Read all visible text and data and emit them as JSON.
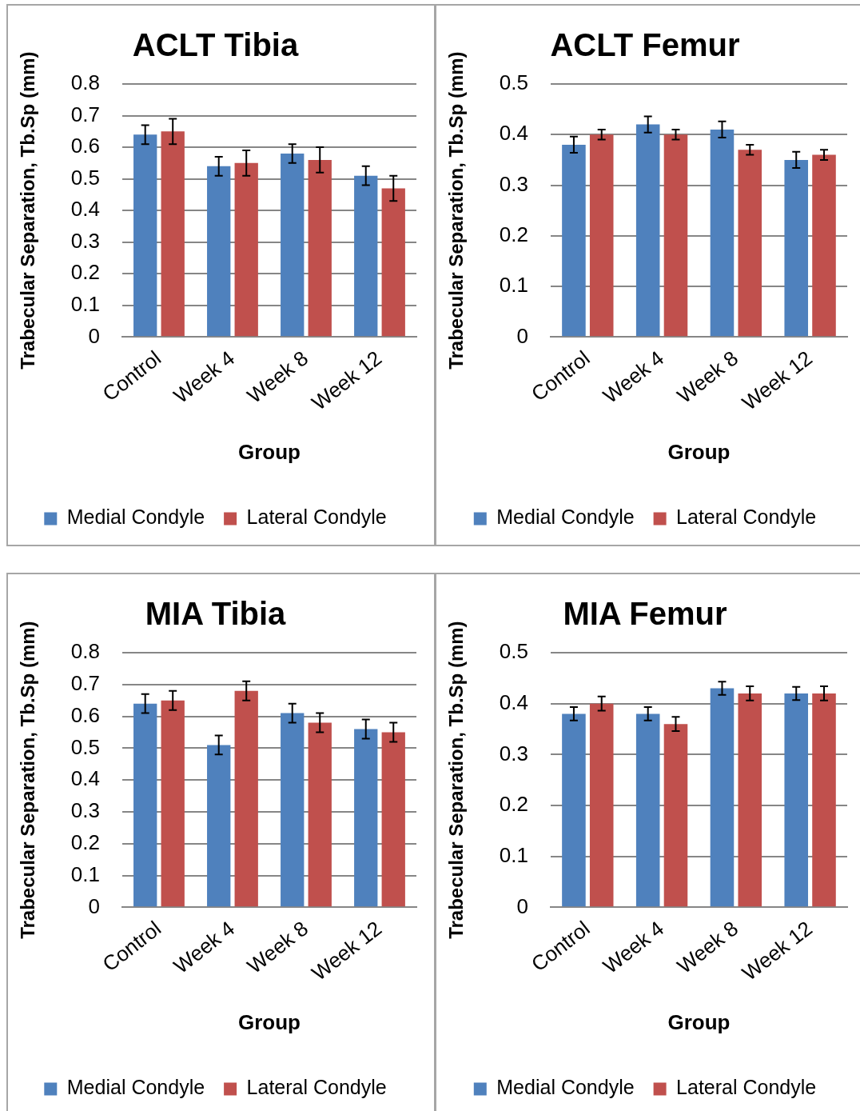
{
  "chart_data": [
    {
      "type": "bar",
      "title": "ACLT Tibia",
      "xlabel": "Group",
      "ylabel": "Trabecular Separation, Tb.Sp (mm)",
      "categories": [
        "Control",
        "Week 4",
        "Week 8",
        "Week 12"
      ],
      "series": [
        {
          "name": "Medial Condyle",
          "color": "#4f81bd",
          "values": [
            0.64,
            0.54,
            0.58,
            0.51
          ],
          "errors": [
            0.03,
            0.03,
            0.03,
            0.03
          ]
        },
        {
          "name": "Lateral Condyle",
          "color": "#c0504d",
          "values": [
            0.65,
            0.55,
            0.56,
            0.47
          ],
          "errors": [
            0.04,
            0.04,
            0.04,
            0.04
          ]
        }
      ],
      "ylim": [
        0,
        0.8
      ],
      "yticks": [
        0,
        0.1,
        0.2,
        0.3,
        0.4,
        0.5,
        0.6,
        0.7,
        0.8
      ],
      "grid": "y",
      "legend": "bottom"
    },
    {
      "type": "bar",
      "title": "ACLT Femur",
      "xlabel": "Group",
      "ylabel": "Trabecular Separation, Tb.Sp (mm)",
      "categories": [
        "Control",
        "Week 4",
        "Week 8",
        "Week 12"
      ],
      "series": [
        {
          "name": "Medial Condyle",
          "color": "#4f81bd",
          "values": [
            0.38,
            0.42,
            0.41,
            0.35
          ],
          "errors": [
            0.016,
            0.016,
            0.016,
            0.016
          ]
        },
        {
          "name": "Lateral Condyle",
          "color": "#c0504d",
          "values": [
            0.4,
            0.4,
            0.37,
            0.36
          ],
          "errors": [
            0.01,
            0.01,
            0.01,
            0.01
          ]
        }
      ],
      "ylim": [
        0,
        0.5
      ],
      "yticks": [
        0,
        0.1,
        0.2,
        0.3,
        0.4,
        0.5
      ],
      "grid": "y",
      "legend": "bottom"
    },
    {
      "type": "bar",
      "title": "MIA Tibia",
      "xlabel": "Group",
      "ylabel": "Trabecular Separation, Tb.Sp (mm)",
      "categories": [
        "Control",
        "Week 4",
        "Week 8",
        "Week 12"
      ],
      "series": [
        {
          "name": "Medial Condyle",
          "color": "#4f81bd",
          "values": [
            0.64,
            0.51,
            0.61,
            0.56
          ],
          "errors": [
            0.03,
            0.03,
            0.03,
            0.03
          ]
        },
        {
          "name": "Lateral Condyle",
          "color": "#c0504d",
          "values": [
            0.65,
            0.68,
            0.58,
            0.55
          ],
          "errors": [
            0.03,
            0.03,
            0.03,
            0.03
          ]
        }
      ],
      "ylim": [
        0,
        0.8
      ],
      "yticks": [
        0,
        0.1,
        0.2,
        0.3,
        0.4,
        0.5,
        0.6,
        0.7,
        0.8
      ],
      "grid": "y",
      "legend": "bottom"
    },
    {
      "type": "bar",
      "title": "MIA Femur",
      "xlabel": "Group",
      "ylabel": "Trabecular Separation, Tb.Sp (mm)",
      "categories": [
        "Control",
        "Week 4",
        "Week 8",
        "Week 12"
      ],
      "series": [
        {
          "name": "Medial Condyle",
          "color": "#4f81bd",
          "values": [
            0.38,
            0.38,
            0.43,
            0.42
          ],
          "errors": [
            0.013,
            0.013,
            0.013,
            0.013
          ]
        },
        {
          "name": "Lateral Condyle",
          "color": "#c0504d",
          "values": [
            0.4,
            0.36,
            0.42,
            0.42
          ],
          "errors": [
            0.014,
            0.014,
            0.014,
            0.014
          ]
        }
      ],
      "ylim": [
        0,
        0.5
      ],
      "yticks": [
        0,
        0.1,
        0.2,
        0.3,
        0.4,
        0.5
      ],
      "grid": "y",
      "legend": "bottom"
    }
  ]
}
